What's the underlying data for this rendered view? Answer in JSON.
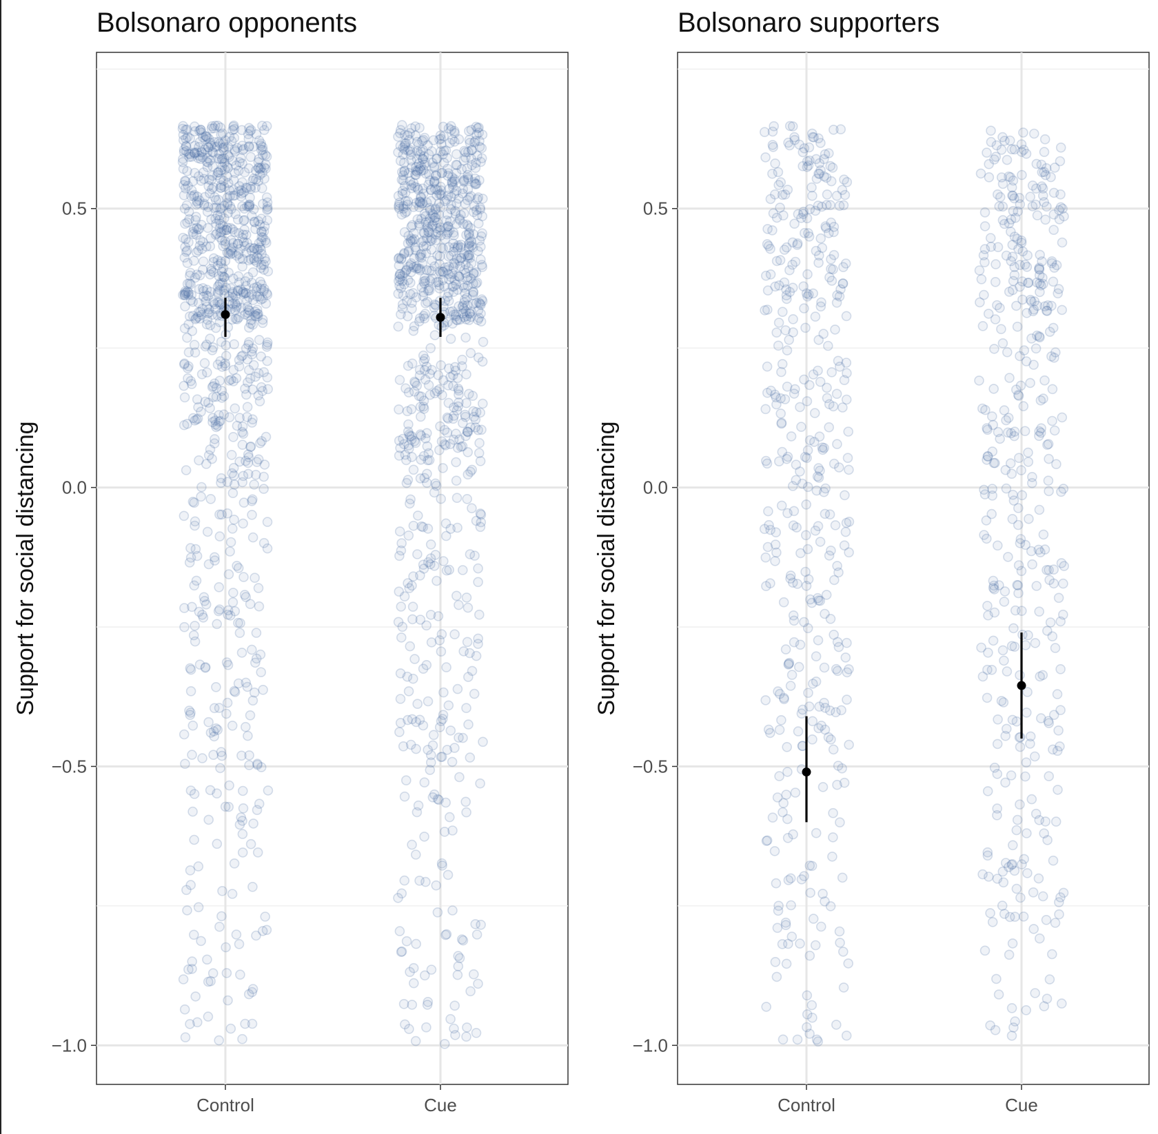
{
  "chart_data": [
    {
      "type": "scatter",
      "title": "Bolsonaro opponents",
      "xlabel": "",
      "ylabel": "Support for social distancing",
      "categories": [
        "Control",
        "Cue"
      ],
      "ylim": [
        -1.07,
        0.78
      ],
      "yticks": [
        -1.0,
        -0.5,
        0.0,
        0.5
      ],
      "ytick_labels": [
        "−1.0",
        "−0.5",
        "0.0",
        "0.5"
      ],
      "grid": true,
      "summary": [
        {
          "category": "Control",
          "mean": 0.31,
          "ci_low": 0.27,
          "ci_high": 0.34
        },
        {
          "category": "Cue",
          "mean": 0.305,
          "ci_low": 0.27,
          "ci_high": 0.34
        }
      ],
      "jitter": {
        "Control": {
          "n": 900,
          "weights": [
            [
              "-1.0",
              "-0.5",
              0.08
            ],
            [
              "-0.5",
              "0.0",
              0.14
            ],
            [
              "0.0",
              "0.3",
              0.18
            ],
            [
              "0.3",
              "0.65",
              0.6
            ]
          ]
        },
        "Cue": {
          "n": 900,
          "weights": [
            [
              "-1.0",
              "-0.5",
              0.08
            ],
            [
              "-0.5",
              "0.0",
              0.14
            ],
            [
              "0.0",
              "0.3",
              0.18
            ],
            [
              "0.3",
              "0.65",
              0.6
            ]
          ]
        }
      }
    },
    {
      "type": "scatter",
      "title": "Bolsonaro supporters",
      "xlabel": "",
      "ylabel": "Support for social distancing",
      "categories": [
        "Control",
        "Cue"
      ],
      "ylim": [
        -1.07,
        0.78
      ],
      "yticks": [
        -1.0,
        -0.5,
        0.0,
        0.5
      ],
      "ytick_labels": [
        "−1.0",
        "−0.5",
        "0.0",
        "0.5"
      ],
      "grid": true,
      "summary": [
        {
          "category": "Control",
          "mean": -0.51,
          "ci_low": -0.6,
          "ci_high": -0.41
        },
        {
          "category": "Cue",
          "mean": -0.355,
          "ci_low": -0.45,
          "ci_high": -0.26
        }
      ],
      "jitter": {
        "Control": {
          "n": 420,
          "weights": [
            [
              "-1.0",
              "-0.5",
              0.17
            ],
            [
              "-0.5",
              "0.0",
              0.28
            ],
            [
              "0.0",
              "0.3",
              0.2
            ],
            [
              "0.3",
              "0.65",
              0.35
            ]
          ]
        },
        "Cue": {
          "n": 420,
          "weights": [
            [
              "-1.0",
              "-0.5",
              0.18
            ],
            [
              "-0.5",
              "0.0",
              0.27
            ],
            [
              "0.0",
              "0.3",
              0.18
            ],
            [
              "0.3",
              "0.65",
              0.37
            ]
          ]
        }
      }
    }
  ]
}
